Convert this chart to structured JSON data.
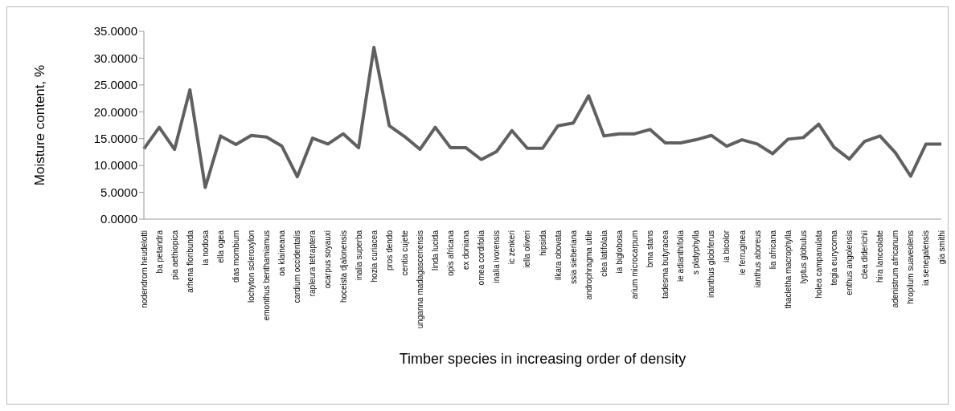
{
  "chart_data": {
    "type": "line",
    "xlabel": "Timber species in increasing order of density",
    "ylabel": "Moisture content, %",
    "categories": [
      "nodendrom heudelotti",
      "ba petandra",
      "pia aethiopica",
      "arhena floribunda",
      "ia nodosa",
      "ella ogea",
      "dias mombium",
      "lochyton scleroxylon",
      "emonthus benthamiamus",
      "oa klaineana",
      "cardium occidentalis",
      "rapleura tetraptera",
      "ocarpus soyauxi",
      "hoceista djalonensis",
      "inalia superba",
      "hozia curiacea",
      "pros dendo",
      "centia cujete",
      "unganna madagasceriensis",
      "linda lucida",
      "opis africana",
      "ex doniana",
      "ornea cordifolia",
      "inalia ivorensis",
      "ic zenkeri",
      "iella oliveri",
      "hipsida",
      "ilkara obovata",
      "ssia sieberiana",
      "androphragma utile",
      "clea latifolaia",
      "ia biglobosa",
      "arium microcarpum",
      "bma stans",
      "tadesma butyracea",
      "ie adianthifolia",
      "s platyphylla",
      "inanthus globiferus",
      "ia bicolor",
      "ie ferruginea",
      "ianthus aboreus",
      "lia africana",
      "thacletha macrophylla",
      "lyptus globulus",
      "holea campanulata",
      "tegia eurycoma",
      "enthus angolensis",
      "clea diderichii",
      "hira lanceolate",
      "adenistrum africanum",
      "hropilum suaveolens",
      "ia senegalensis",
      "gia smithi"
    ],
    "series": [
      {
        "color": "#606060",
        "values": [
          13.1,
          17.1,
          13.0,
          24.1,
          5.9,
          15.5,
          13.9,
          15.6,
          15.3,
          13.6,
          7.9,
          15.1,
          14.0,
          15.9,
          13.3,
          32.0,
          17.4,
          15.4,
          13.0,
          17.1,
          13.3,
          13.3,
          11.1,
          12.6,
          16.5,
          13.2,
          13.2,
          17.4,
          17.9,
          23.0,
          15.5,
          15.9,
          15.9,
          16.7,
          14.2,
          14.2,
          14.8,
          15.6,
          13.6,
          14.8,
          14.0,
          12.2,
          14.9,
          15.2,
          17.7,
          13.4,
          11.2,
          14.5,
          15.5,
          12.4,
          8.0,
          14.0,
          14.0
        ]
      }
    ],
    "ylim": [
      0,
      35
    ],
    "yticks": [
      {
        "value": 0,
        "label": "0.0000"
      },
      {
        "value": 5,
        "label": "5.0000"
      },
      {
        "value": 10,
        "label": "10.0000"
      },
      {
        "value": 15,
        "label": "15.0000"
      },
      {
        "value": 20,
        "label": "20.0000"
      },
      {
        "value": 25,
        "label": "25.0000"
      },
      {
        "value": 30,
        "label": "30.0000"
      },
      {
        "value": 35,
        "label": "35.0000"
      }
    ],
    "grid": false,
    "legend": false,
    "marker": "none",
    "line_style": "solid"
  }
}
